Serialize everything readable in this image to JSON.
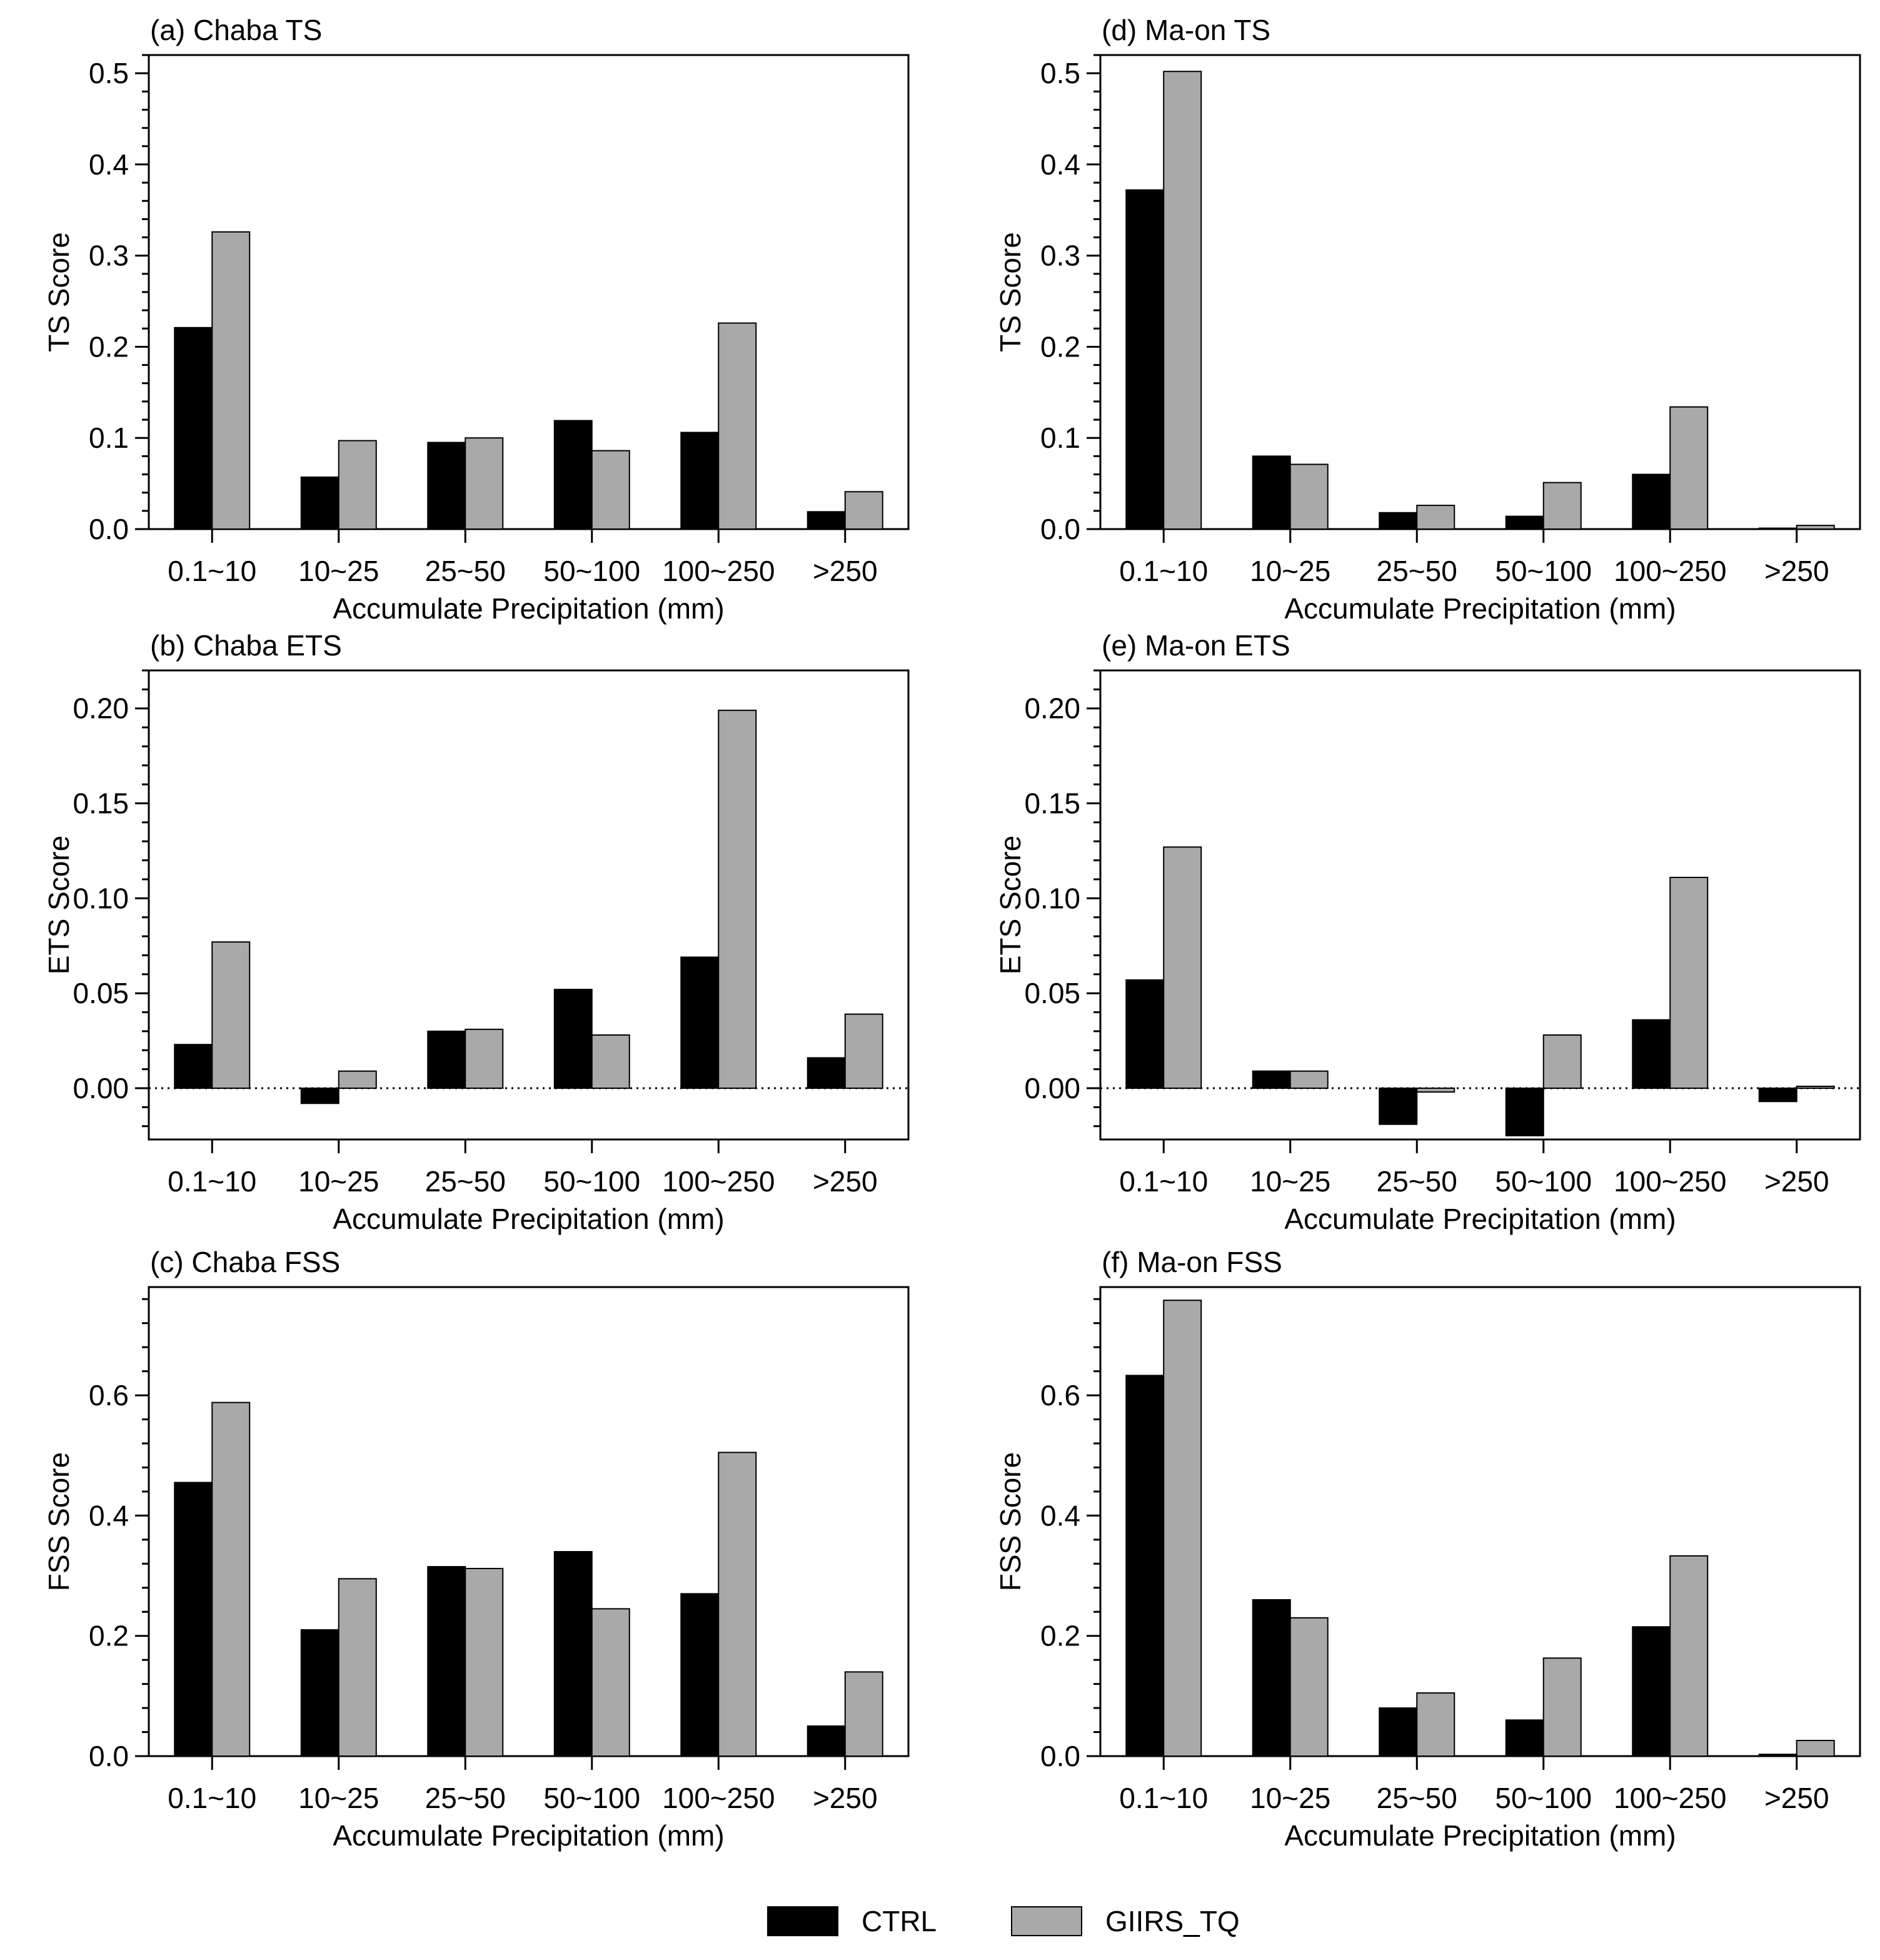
{
  "colors": {
    "CTRL": "#000000",
    "GIIRS_TQ": "#a9a9a9"
  },
  "legend": {
    "items": [
      {
        "name": "CTRL",
        "color": "#000000"
      },
      {
        "name": "GIIRS_TQ",
        "color": "#a9a9a9"
      }
    ]
  },
  "chart_data": [
    {
      "type": "bar",
      "title": "(a) Chaba TS",
      "xlabel": "Accumulate Precipitation (mm)",
      "ylabel": "TS Score",
      "categories": [
        "0.1~10",
        "10~25",
        "25~50",
        "50~100",
        "100~250",
        ">250"
      ],
      "ylim": [
        0,
        0.52
      ],
      "yticks": [
        0.0,
        0.1,
        0.2,
        0.3,
        0.4,
        0.5
      ],
      "ytick_labels": [
        "0.0",
        "0.1",
        "0.2",
        "0.3",
        "0.4",
        "0.5"
      ],
      "minor_step": 0.02,
      "zero_line": false,
      "series": [
        {
          "name": "CTRL",
          "values": [
            0.221,
            0.057,
            0.095,
            0.119,
            0.106,
            0.019
          ]
        },
        {
          "name": "GIIRS_TQ",
          "values": [
            0.326,
            0.097,
            0.1,
            0.086,
            0.226,
            0.041
          ]
        }
      ]
    },
    {
      "type": "bar",
      "title": "(b) Chaba ETS",
      "xlabel": "Accumulate Precipitation (mm)",
      "ylabel": "ETS Score",
      "categories": [
        "0.1~10",
        "10~25",
        "25~50",
        "50~100",
        "100~250",
        ">250"
      ],
      "ylim": [
        -0.027,
        0.22
      ],
      "yticks": [
        0.0,
        0.05,
        0.1,
        0.15,
        0.2
      ],
      "ytick_labels": [
        "0.00",
        "0.05",
        "0.10",
        "0.15",
        "0.20"
      ],
      "minor_step": 0.01,
      "zero_line": true,
      "series": [
        {
          "name": "CTRL",
          "values": [
            0.023,
            -0.008,
            0.03,
            0.052,
            0.069,
            0.016
          ]
        },
        {
          "name": "GIIRS_TQ",
          "values": [
            0.077,
            0.009,
            0.031,
            0.028,
            0.199,
            0.039
          ]
        }
      ]
    },
    {
      "type": "bar",
      "title": "(c) Chaba FSS",
      "xlabel": "Accumulate Precipitation (mm)",
      "ylabel": "FSS Score",
      "categories": [
        "0.1~10",
        "10~25",
        "25~50",
        "50~100",
        "100~250",
        ">250"
      ],
      "ylim": [
        0,
        0.78
      ],
      "yticks": [
        0.0,
        0.2,
        0.4,
        0.6
      ],
      "ytick_labels": [
        "0.0",
        "0.2",
        "0.4",
        "0.6"
      ],
      "minor_step": 0.04,
      "zero_line": false,
      "series": [
        {
          "name": "CTRL",
          "values": [
            0.455,
            0.21,
            0.315,
            0.34,
            0.27,
            0.05
          ]
        },
        {
          "name": "GIIRS_TQ",
          "values": [
            0.588,
            0.295,
            0.312,
            0.245,
            0.505,
            0.14
          ]
        }
      ]
    },
    {
      "type": "bar",
      "title": "(d) Ma-on TS",
      "xlabel": "Accumulate Precipitation (mm)",
      "ylabel": "TS Score",
      "categories": [
        "0.1~10",
        "10~25",
        "25~50",
        "50~100",
        "100~250",
        ">250"
      ],
      "ylim": [
        0,
        0.52
      ],
      "yticks": [
        0.0,
        0.1,
        0.2,
        0.3,
        0.4,
        0.5
      ],
      "ytick_labels": [
        "0.0",
        "0.1",
        "0.2",
        "0.3",
        "0.4",
        "0.5"
      ],
      "minor_step": 0.02,
      "zero_line": false,
      "series": [
        {
          "name": "CTRL",
          "values": [
            0.372,
            0.08,
            0.018,
            0.014,
            0.06,
            0.001
          ]
        },
        {
          "name": "GIIRS_TQ",
          "values": [
            0.502,
            0.071,
            0.026,
            0.051,
            0.134,
            0.004
          ]
        }
      ]
    },
    {
      "type": "bar",
      "title": "(e) Ma-on ETS",
      "xlabel": "Accumulate Precipitation (mm)",
      "ylabel": "ETS Score",
      "categories": [
        "0.1~10",
        "10~25",
        "25~50",
        "50~100",
        "100~250",
        ">250"
      ],
      "ylim": [
        -0.027,
        0.22
      ],
      "yticks": [
        0.0,
        0.05,
        0.1,
        0.15,
        0.2
      ],
      "ytick_labels": [
        "0.00",
        "0.05",
        "0.10",
        "0.15",
        "0.20"
      ],
      "minor_step": 0.01,
      "zero_line": true,
      "series": [
        {
          "name": "CTRL",
          "values": [
            0.057,
            0.009,
            -0.019,
            -0.025,
            0.036,
            -0.007
          ]
        },
        {
          "name": "GIIRS_TQ",
          "values": [
            0.127,
            0.009,
            -0.002,
            0.028,
            0.111,
            0.001
          ]
        }
      ]
    },
    {
      "type": "bar",
      "title": "(f) Ma-on FSS",
      "xlabel": "Accumulate Precipitation (mm)",
      "ylabel": "FSS Score",
      "categories": [
        "0.1~10",
        "10~25",
        "25~50",
        "50~100",
        "100~250",
        ">250"
      ],
      "ylim": [
        0,
        0.78
      ],
      "yticks": [
        0.0,
        0.2,
        0.4,
        0.6
      ],
      "ytick_labels": [
        "0.0",
        "0.2",
        "0.4",
        "0.6"
      ],
      "minor_step": 0.04,
      "zero_line": false,
      "series": [
        {
          "name": "CTRL",
          "values": [
            0.633,
            0.26,
            0.08,
            0.06,
            0.215,
            0.003
          ]
        },
        {
          "name": "GIIRS_TQ",
          "values": [
            0.758,
            0.23,
            0.105,
            0.163,
            0.333,
            0.026
          ]
        }
      ]
    }
  ]
}
